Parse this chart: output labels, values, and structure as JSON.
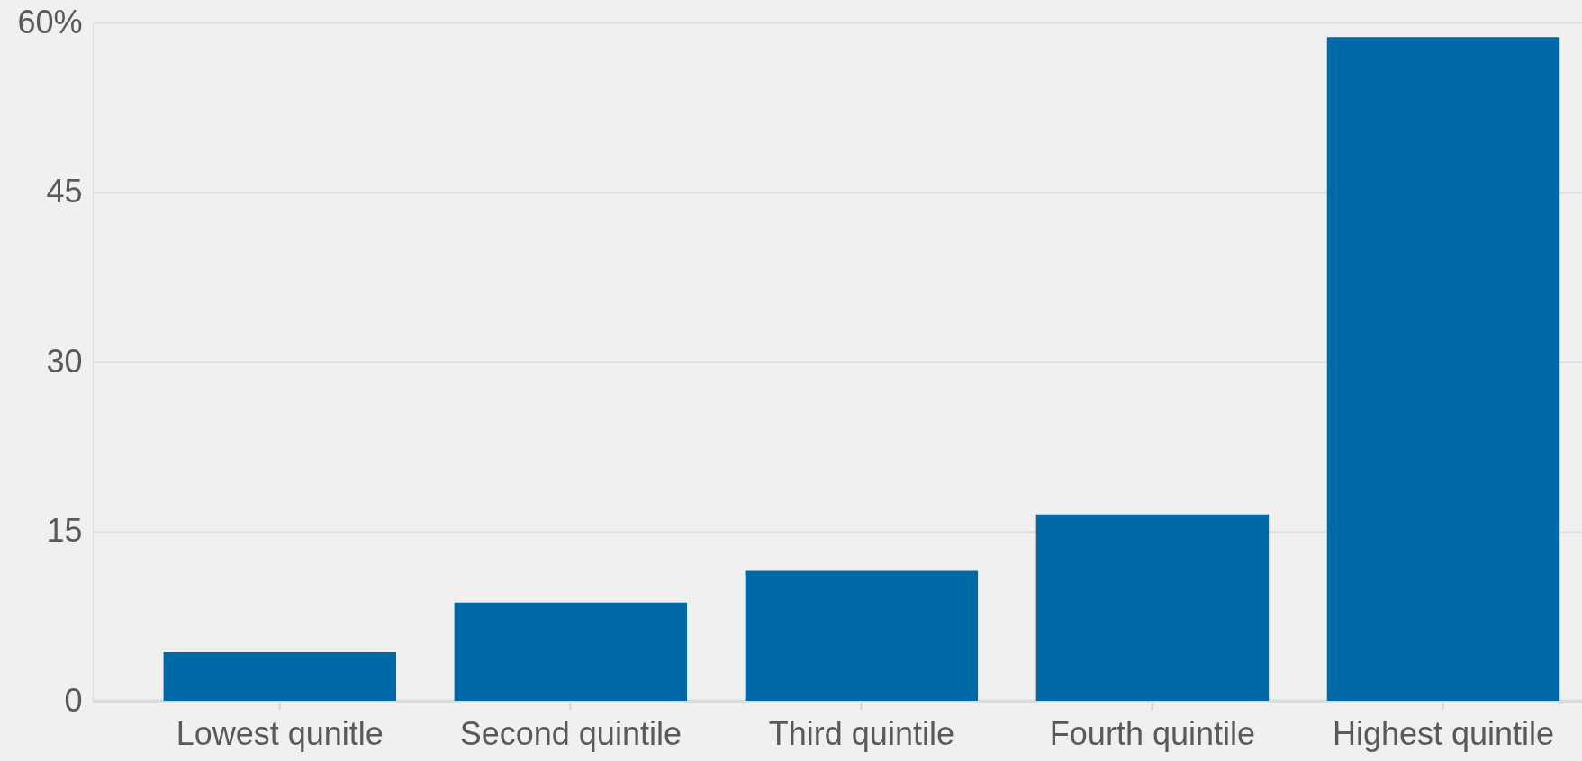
{
  "chart_data": {
    "type": "bar",
    "categories": [
      "Lowest qunitle",
      "Second quintile",
      "Third quintile",
      "Fourth quintile",
      "Highest quintile"
    ],
    "values": [
      4.3,
      8.7,
      11.5,
      16.5,
      58.7
    ],
    "color": "#0069a7",
    "ylim": [
      0,
      60
    ],
    "yticks": [
      0,
      15,
      30,
      45,
      {
        "value": 60,
        "label": "60%"
      }
    ],
    "grid": "y"
  }
}
